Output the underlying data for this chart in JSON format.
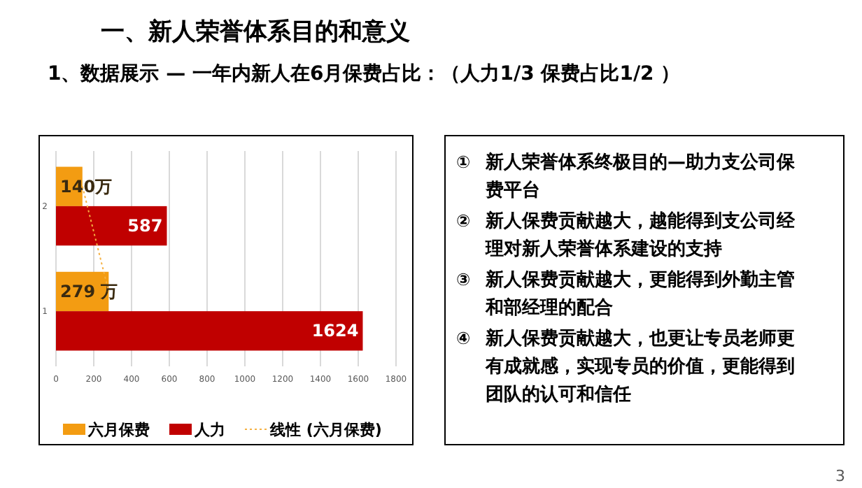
{
  "chart_data": {
    "type": "bar",
    "orientation": "horizontal",
    "title": "一、新人荣誉体系目的和意义",
    "subtitle": "1、数据展示 — 一年内新人在6月保费占比：（人力1/3  保费占比1/2 ）",
    "categories": [
      "2",
      "1"
    ],
    "series": [
      {
        "name": "六月保费",
        "color": "#f39c12",
        "values": [
          140,
          279
        ],
        "value_labels": [
          "140万",
          "279 万"
        ]
      },
      {
        "name": "人力",
        "color": "#c00000",
        "values": [
          587,
          1624
        ],
        "value_labels": [
          "587",
          "1624"
        ]
      },
      {
        "name": "线性 (六月保费)",
        "type": "line",
        "color": "#f5b041",
        "line_style": "dotted",
        "values": [
          140,
          279
        ]
      }
    ],
    "xlim": [
      0,
      1800
    ],
    "xticks": [
      0,
      200,
      400,
      600,
      800,
      1000,
      1200,
      1400,
      1600,
      1800
    ],
    "grid": "x",
    "legend": "bottom",
    "annotations": [
      "① 新人荣誉体系终极目的—助力支公司保费平台",
      "② 新人保费贡献越大，越能得到支公司经理对新人荣誉体系建设的支持",
      "③ 新人保费贡献越大，更能得到外勤主管和部经理的配合",
      "④ 新人保费贡献越大，也更让专员老师更有成就感，实现专员的价值，更能得到团队的认可和信任",
      "3"
    ]
  }
}
